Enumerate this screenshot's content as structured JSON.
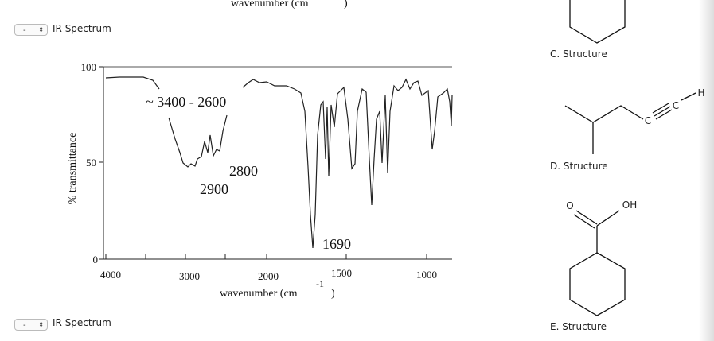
{
  "top_text": "wavenumber (cm",
  "questions": [
    {
      "select": "-",
      "label": "IR Spectrum"
    },
    {
      "select": "-",
      "label": "IR Spectrum"
    }
  ],
  "spectrum": {
    "y_axis_label": "% transmittance",
    "x_axis_label": "wavenumber (cm",
    "x_axis_exponent": "-1",
    "x_axis_close": ")",
    "yticks": [
      "100",
      "50",
      "0"
    ],
    "xticks": [
      "4000",
      "3000",
      "2000",
      "1500",
      "1000"
    ],
    "annotations": [
      "~ 3400 - 2600",
      "2800",
      "2900",
      "1690"
    ]
  },
  "structures": [
    "C. Structure",
    "D. Structure",
    "E. Structure"
  ],
  "atoms": [
    "C",
    "C",
    "H",
    "O",
    "OH"
  ]
}
